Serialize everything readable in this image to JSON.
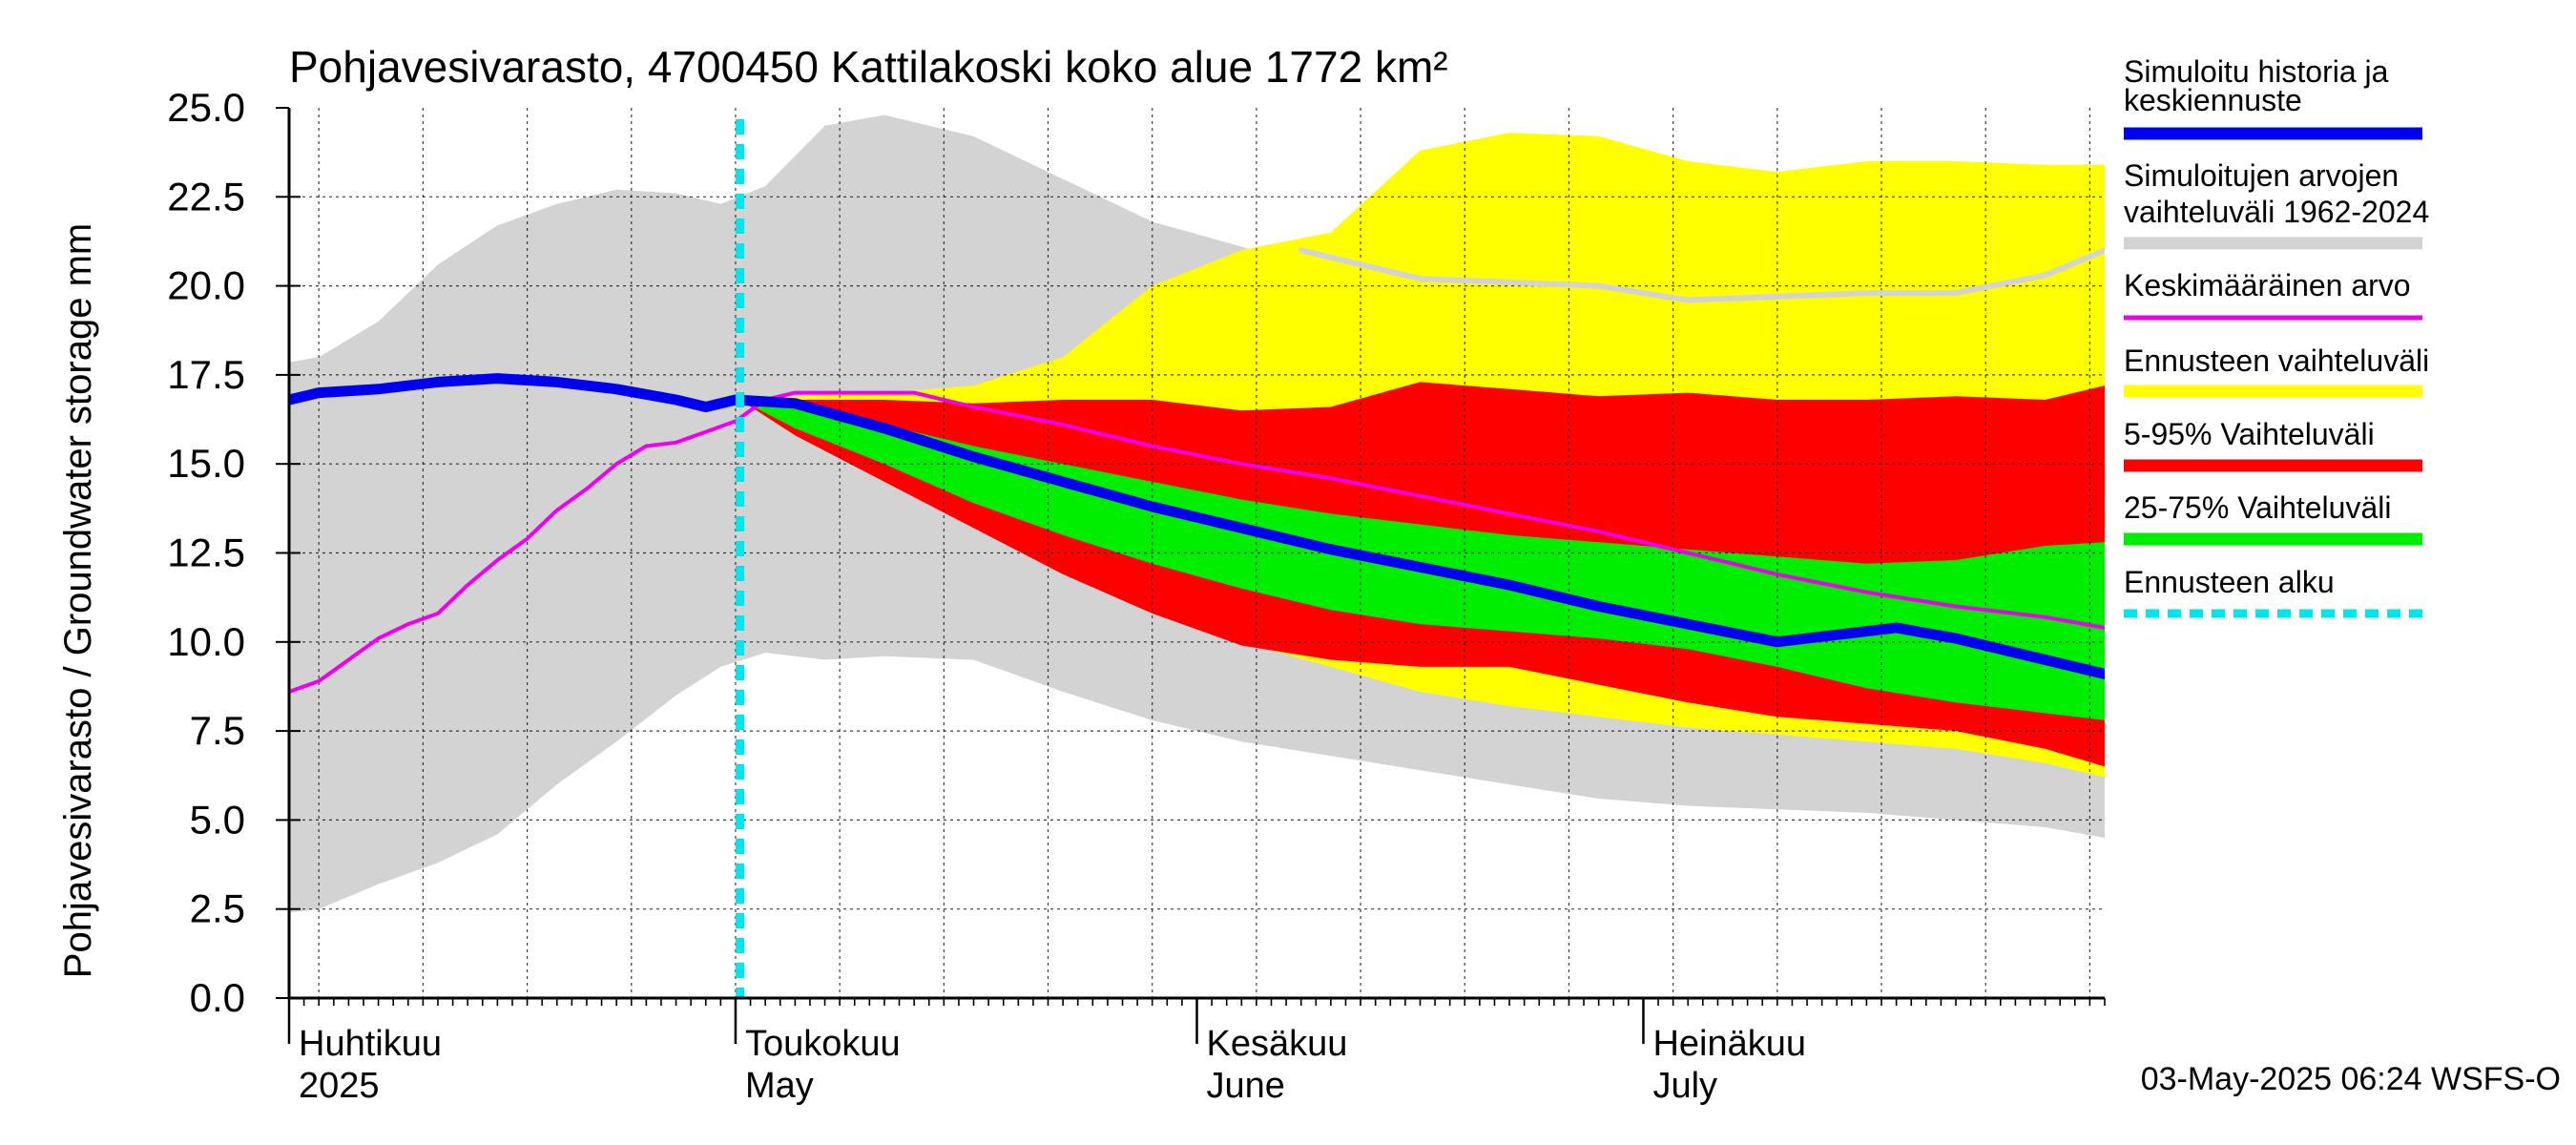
{
  "chart_data": {
    "type": "area",
    "title": "Pohjavesivarasto, 4700450 Kattilakoski koko alue 1772 km²",
    "ylabel": "Pohjavesivarasto / Groundwater storage   mm",
    "ylim": [
      0,
      25
    ],
    "yticks": [
      "0.0",
      "2.5",
      "5.0",
      "7.5",
      "10.0",
      "12.5",
      "15.0",
      "17.5",
      "20.0",
      "22.5",
      "25.0"
    ],
    "xlim": [
      0,
      122
    ],
    "month_labels": [
      {
        "day": 0,
        "fi": "Huhtikuu",
        "en": "2025"
      },
      {
        "day": 30,
        "fi": "Toukokuu",
        "en": "May"
      },
      {
        "day": 61,
        "fi": "Kesäkuu",
        "en": "June"
      },
      {
        "day": 91,
        "fi": "Heinäkuu",
        "en": "July"
      }
    ],
    "forecast_start_day": 30.3,
    "footer": "03-May-2025 06:24 WSFS-O",
    "legend": [
      {
        "label": "Simuloitu historia ja keskiennuste",
        "color": "#0000ee"
      },
      {
        "label": "Simuloitujen arvojen vaihteluväli 1962-2024",
        "color": "#d3d3d3"
      },
      {
        "label": "Keskimääräinen arvo",
        "color": "#ee00ee"
      },
      {
        "label": "Ennusteen vaihteluväli",
        "color": "#ffff00"
      },
      {
        "label": "5-95% Vaihteluväli",
        "color": "#ff0000"
      },
      {
        "label": "25-75% Vaihteluväli",
        "color": "#00ee00"
      },
      {
        "label": "Ennusteen alku",
        "color": "#00e5ee"
      }
    ],
    "series": [
      {
        "name": "Simuloitujen arvojen vaihteluväli 1962-2024",
        "kind": "band",
        "color": "#d3d3d3",
        "x": [
          -2,
          2,
          6,
          10,
          14,
          18,
          22,
          26,
          29,
          32,
          36,
          40,
          46,
          52,
          58,
          64,
          70,
          76,
          82,
          88,
          94,
          100,
          106,
          112,
          118,
          122
        ],
        "upper": [
          17.7,
          18.0,
          19.0,
          20.6,
          21.7,
          22.3,
          22.7,
          22.6,
          22.3,
          22.8,
          24.5,
          24.8,
          24.2,
          23.0,
          21.8,
          21.1,
          20.3,
          20.2,
          20.1,
          20.0,
          20.0,
          19.9,
          19.8,
          20.0,
          20.4,
          21.0
        ],
        "lower": [
          2.3,
          2.5,
          3.2,
          3.8,
          4.6,
          6.0,
          7.2,
          8.5,
          9.3,
          9.7,
          9.5,
          9.6,
          9.5,
          8.6,
          7.8,
          7.2,
          6.8,
          6.4,
          6.0,
          5.6,
          5.4,
          5.3,
          5.2,
          5.0,
          4.8,
          4.5
        ]
      },
      {
        "name": "Ennusteen vaihteluväli",
        "kind": "band",
        "color": "#ffff00",
        "x": [
          30.3,
          34,
          40,
          46,
          52,
          58,
          64,
          70,
          76,
          82,
          88,
          94,
          100,
          106,
          112,
          118,
          122
        ],
        "upper": [
          16.8,
          16.9,
          17.0,
          17.2,
          18.0,
          20.0,
          21.0,
          21.5,
          23.8,
          24.3,
          24.2,
          23.5,
          23.2,
          23.5,
          23.5,
          23.4,
          23.4
        ],
        "lower": [
          16.8,
          15.8,
          14.8,
          13.5,
          12.2,
          11.0,
          10.0,
          9.3,
          8.6,
          8.2,
          7.9,
          7.6,
          7.4,
          7.2,
          7.0,
          6.6,
          6.2
        ]
      },
      {
        "name": "5-95% Vaihteluväli",
        "kind": "band",
        "color": "#ff0000",
        "x": [
          30.3,
          34,
          40,
          46,
          52,
          58,
          64,
          70,
          76,
          82,
          88,
          94,
          100,
          106,
          112,
          118,
          122
        ],
        "upper": [
          16.8,
          16.8,
          16.8,
          16.7,
          16.8,
          16.8,
          16.5,
          16.6,
          17.3,
          17.1,
          16.9,
          17.0,
          16.8,
          16.8,
          16.9,
          16.8,
          17.2
        ],
        "lower": [
          16.8,
          15.8,
          14.5,
          13.2,
          11.9,
          10.8,
          9.9,
          9.5,
          9.3,
          9.3,
          8.8,
          8.3,
          7.9,
          7.7,
          7.5,
          7.0,
          6.5
        ]
      },
      {
        "name": "25-75% Vaihteluväli",
        "kind": "band",
        "color": "#00ee00",
        "x": [
          30.3,
          34,
          40,
          46,
          52,
          58,
          64,
          70,
          76,
          82,
          88,
          94,
          100,
          106,
          112,
          118,
          122
        ],
        "upper": [
          16.8,
          16.6,
          16.1,
          15.5,
          15.0,
          14.5,
          14.0,
          13.6,
          13.3,
          13.0,
          12.8,
          12.6,
          12.4,
          12.2,
          12.3,
          12.7,
          12.8
        ],
        "lower": [
          16.8,
          16.0,
          15.0,
          13.9,
          13.0,
          12.2,
          11.5,
          10.9,
          10.5,
          10.3,
          10.1,
          9.8,
          9.3,
          8.7,
          8.3,
          8.0,
          7.8
        ]
      },
      {
        "name": "Keskimääräinen arvo",
        "kind": "line",
        "color": "#ee00ee",
        "width": 4,
        "x": [
          -2,
          2,
          4,
          6,
          8,
          10,
          12,
          14,
          16,
          18,
          20,
          22,
          24,
          26,
          28,
          30,
          32,
          34,
          38,
          42,
          46,
          52,
          58,
          64,
          70,
          76,
          82,
          88,
          94,
          100,
          106,
          112,
          118,
          122
        ],
        "y": [
          8.3,
          8.9,
          9.5,
          10.1,
          10.5,
          10.8,
          11.6,
          12.3,
          12.9,
          13.7,
          14.3,
          15.0,
          15.5,
          15.6,
          15.9,
          16.2,
          16.8,
          17.0,
          17.0,
          17.0,
          16.6,
          16.1,
          15.5,
          15.0,
          14.6,
          14.1,
          13.6,
          13.1,
          12.5,
          11.9,
          11.4,
          11.0,
          10.7,
          10.4
        ]
      },
      {
        "name": "Simuloitu historia ja keskiennuste",
        "kind": "line",
        "color": "#0000ee",
        "width": 11,
        "x": [
          -2,
          2,
          6,
          10,
          14,
          18,
          22,
          26,
          28,
          30,
          34,
          40,
          46,
          52,
          58,
          64,
          70,
          76,
          82,
          88,
          94,
          100,
          104,
          108,
          112,
          118,
          122
        ],
        "y": [
          16.6,
          17.0,
          17.1,
          17.3,
          17.4,
          17.3,
          17.1,
          16.8,
          16.6,
          16.8,
          16.7,
          16.0,
          15.2,
          14.5,
          13.8,
          13.2,
          12.6,
          12.1,
          11.6,
          11.0,
          10.5,
          10.0,
          10.2,
          10.4,
          10.1,
          9.5,
          9.1
        ]
      },
      {
        "name": "Simulated range upper line",
        "kind": "line",
        "color": "#d3d3d3",
        "width": 6,
        "x": [
          68,
          76,
          82,
          88,
          94,
          100,
          106,
          112,
          118,
          122
        ],
        "y": [
          21.0,
          20.2,
          20.1,
          20.0,
          19.6,
          19.7,
          19.8,
          19.8,
          20.3,
          21.0
        ]
      }
    ]
  }
}
